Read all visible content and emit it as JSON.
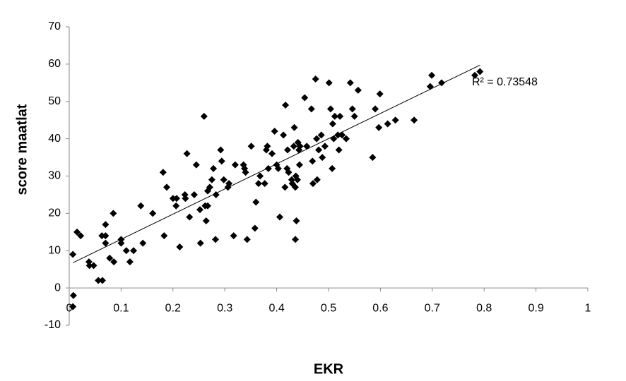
{
  "chart_data": {
    "type": "scatter",
    "x_label": "EKR",
    "y_label": "score maatlat",
    "annotation": "R² = 0.73548",
    "color": "#000000",
    "trendline": true,
    "xlim": [
      0,
      1
    ],
    "ylim": [
      -10,
      70
    ],
    "xticks": [
      0,
      0.1,
      0.2,
      0.3,
      0.4,
      0.5,
      0.6,
      0.7,
      0.8,
      0.9,
      1
    ],
    "yticks": [
      -10,
      0,
      10,
      20,
      30,
      40,
      50,
      60,
      70
    ],
    "x": [
      0.007,
      0.008,
      0.007,
      0.015,
      0.022,
      0.038,
      0.039,
      0.047,
      0.056,
      0.064,
      0.063,
      0.07,
      0.07,
      0.07,
      0.078,
      0.086,
      0.085,
      0.1,
      0.1,
      0.11,
      0.117,
      0.124,
      0.138,
      0.142,
      0.161,
      0.181,
      0.183,
      0.188,
      0.2,
      0.206,
      0.207,
      0.213,
      0.223,
      0.224,
      0.227,
      0.232,
      0.241,
      0.245,
      0.252,
      0.253,
      0.26,
      0.262,
      0.264,
      0.267,
      0.267,
      0.271,
      0.275,
      0.278,
      0.282,
      0.283,
      0.292,
      0.294,
      0.298,
      0.306,
      0.308,
      0.317,
      0.32,
      0.336,
      0.338,
      0.34,
      0.343,
      0.351,
      0.358,
      0.36,
      0.365,
      0.368,
      0.377,
      0.38,
      0.382,
      0.384,
      0.391,
      0.396,
      0.4,
      0.403,
      0.406,
      0.413,
      0.416,
      0.417,
      0.42,
      0.421,
      0.423,
      0.429,
      0.43,
      0.433,
      0.434,
      0.436,
      0.436,
      0.437,
      0.438,
      0.44,
      0.441,
      0.443,
      0.444,
      0.445,
      0.454,
      0.458,
      0.467,
      0.469,
      0.47,
      0.475,
      0.477,
      0.478,
      0.481,
      0.486,
      0.488,
      0.493,
      0.501,
      0.504,
      0.507,
      0.508,
      0.51,
      0.512,
      0.518,
      0.52,
      0.522,
      0.526,
      0.534,
      0.542,
      0.546,
      0.55,
      0.557,
      0.585,
      0.59,
      0.597,
      0.599,
      0.614,
      0.629,
      0.665,
      0.696,
      0.699,
      0.718,
      0.782,
      0.792
    ],
    "values": [
      -5,
      -2,
      9,
      15,
      14,
      7,
      6,
      6,
      2,
      2,
      14,
      14,
      17,
      12,
      8,
      7,
      20,
      13,
      12,
      10,
      7,
      10,
      22,
      12,
      20,
      31,
      14,
      27,
      24,
      22,
      24,
      11,
      25,
      24,
      36,
      19,
      25,
      33,
      21,
      12,
      46,
      22,
      18,
      22,
      26,
      27,
      29,
      32,
      13,
      25,
      37,
      34,
      29,
      27,
      28,
      14,
      33,
      33,
      32,
      31,
      13,
      38,
      16,
      23,
      28,
      30,
      28,
      37,
      38,
      32,
      36,
      42,
      33,
      32,
      19,
      41,
      27,
      49,
      32,
      37,
      31,
      29,
      28,
      38,
      43,
      13,
      27,
      30,
      18,
      29,
      39,
      37,
      33,
      38,
      51,
      38,
      48,
      34,
      28,
      56,
      40,
      29,
      37,
      41,
      35,
      38,
      55,
      48,
      32,
      44,
      40,
      46,
      41,
      37,
      46,
      41,
      40,
      55,
      48,
      46,
      53,
      35,
      48,
      43,
      52,
      44,
      45,
      45,
      54,
      57,
      55,
      57,
      58
    ]
  }
}
